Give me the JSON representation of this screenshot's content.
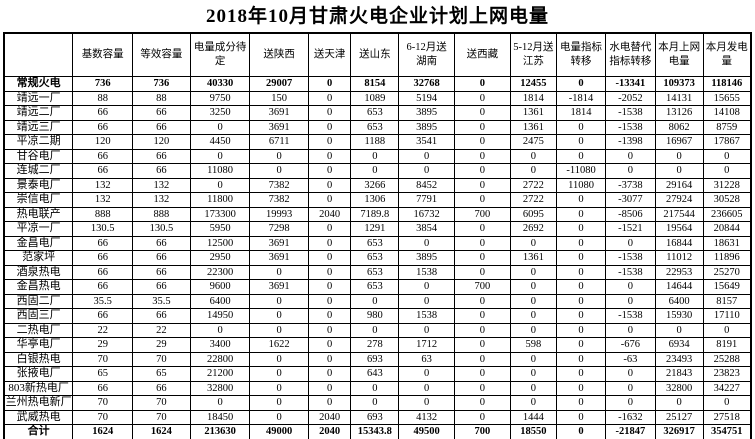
{
  "title": "2018年10月甘肃火电企业计划上网电量",
  "colors": {
    "background": "#ffffff",
    "text": "#000000",
    "border": "#000000"
  },
  "table": {
    "corner_label": "",
    "headers": [
      "基数容量",
      "等效容量",
      "电量成分待定",
      "送陕西",
      "送天津",
      "送山东",
      "6-12月送湖南",
      "送西藏",
      "5-12月送江苏",
      "电量指标转移",
      "水电替代指标转移",
      "本月上网电量",
      "本月发电量"
    ],
    "rows": [
      {
        "label": "常规火电",
        "bold": true,
        "values": [
          "736",
          "736",
          "40330",
          "29007",
          "0",
          "8154",
          "32768",
          "0",
          "12455",
          "0",
          "-13341",
          "109373",
          "118146"
        ]
      },
      {
        "label": "靖远一厂",
        "bold": false,
        "values": [
          "88",
          "88",
          "9750",
          "150",
          "0",
          "1089",
          "5194",
          "0",
          "1814",
          "-1814",
          "-2052",
          "14131",
          "15655"
        ]
      },
      {
        "label": "靖远二厂",
        "bold": false,
        "values": [
          "66",
          "66",
          "3250",
          "3691",
          "0",
          "653",
          "3895",
          "0",
          "1361",
          "1814",
          "-1538",
          "13126",
          "14108"
        ]
      },
      {
        "label": "靖远三厂",
        "bold": false,
        "values": [
          "66",
          "66",
          "0",
          "3691",
          "0",
          "653",
          "3895",
          "0",
          "1361",
          "0",
          "-1538",
          "8062",
          "8759"
        ]
      },
      {
        "label": "平凉二期",
        "bold": false,
        "values": [
          "120",
          "120",
          "4450",
          "6711",
          "0",
          "1188",
          "3541",
          "0",
          "2475",
          "0",
          "-1398",
          "16967",
          "17867"
        ]
      },
      {
        "label": "甘谷电厂",
        "bold": false,
        "values": [
          "66",
          "66",
          "0",
          "0",
          "0",
          "0",
          "0",
          "0",
          "0",
          "0",
          "0",
          "0",
          "0"
        ]
      },
      {
        "label": "连城二厂",
        "bold": false,
        "values": [
          "66",
          "66",
          "11080",
          "0",
          "0",
          "0",
          "0",
          "0",
          "0",
          "-11080",
          "0",
          "0",
          "0"
        ]
      },
      {
        "label": "景泰电厂",
        "bold": false,
        "values": [
          "132",
          "132",
          "0",
          "7382",
          "0",
          "3266",
          "8452",
          "0",
          "2722",
          "11080",
          "-3738",
          "29164",
          "31228"
        ]
      },
      {
        "label": "崇信电厂",
        "bold": false,
        "values": [
          "132",
          "132",
          "11800",
          "7382",
          "0",
          "1306",
          "7791",
          "0",
          "2722",
          "0",
          "-3077",
          "27924",
          "30528"
        ]
      },
      {
        "label": "热电联产",
        "bold": false,
        "values": [
          "888",
          "888",
          "173300",
          "19993",
          "2040",
          "7189.8",
          "16732",
          "700",
          "6095",
          "0",
          "-8506",
          "217544",
          "236605"
        ]
      },
      {
        "label": "平凉一厂",
        "bold": false,
        "values": [
          "130.5",
          "130.5",
          "5950",
          "7298",
          "0",
          "1291",
          "3854",
          "0",
          "2692",
          "0",
          "-1521",
          "19564",
          "20844"
        ]
      },
      {
        "label": "金昌电厂",
        "bold": false,
        "values": [
          "66",
          "66",
          "12500",
          "3691",
          "0",
          "653",
          "0",
          "0",
          "0",
          "0",
          "0",
          "16844",
          "18631"
        ]
      },
      {
        "label": "范家坪",
        "bold": false,
        "values": [
          "66",
          "66",
          "2950",
          "3691",
          "0",
          "653",
          "3895",
          "0",
          "1361",
          "0",
          "-1538",
          "11012",
          "11896"
        ]
      },
      {
        "label": "酒泉热电",
        "bold": false,
        "values": [
          "66",
          "66",
          "22300",
          "0",
          "0",
          "653",
          "1538",
          "0",
          "0",
          "0",
          "-1538",
          "22953",
          "25270"
        ]
      },
      {
        "label": "金昌热电",
        "bold": false,
        "values": [
          "66",
          "66",
          "9600",
          "3691",
          "0",
          "653",
          "0",
          "700",
          "0",
          "0",
          "0",
          "14644",
          "15649"
        ]
      },
      {
        "label": "西固二厂",
        "bold": false,
        "values": [
          "35.5",
          "35.5",
          "6400",
          "0",
          "0",
          "0",
          "0",
          "0",
          "0",
          "0",
          "0",
          "6400",
          "8157"
        ]
      },
      {
        "label": "西固三厂",
        "bold": false,
        "values": [
          "66",
          "66",
          "14950",
          "0",
          "0",
          "980",
          "1538",
          "0",
          "0",
          "0",
          "-1538",
          "15930",
          "17110"
        ]
      },
      {
        "label": "二热电厂",
        "bold": false,
        "values": [
          "22",
          "22",
          "0",
          "0",
          "0",
          "0",
          "0",
          "0",
          "0",
          "0",
          "0",
          "0",
          "0"
        ]
      },
      {
        "label": "华亭电厂",
        "bold": false,
        "values": [
          "29",
          "29",
          "3400",
          "1622",
          "0",
          "278",
          "1712",
          "0",
          "598",
          "0",
          "-676",
          "6934",
          "8191"
        ]
      },
      {
        "label": "白银热电",
        "bold": false,
        "values": [
          "70",
          "70",
          "22800",
          "0",
          "0",
          "693",
          "63",
          "0",
          "0",
          "0",
          "-63",
          "23493",
          "25288"
        ]
      },
      {
        "label": "张掖电厂",
        "bold": false,
        "values": [
          "65",
          "65",
          "21200",
          "0",
          "0",
          "643",
          "0",
          "0",
          "0",
          "0",
          "0",
          "21843",
          "23823"
        ]
      },
      {
        "label": "803新热电厂",
        "bold": false,
        "values": [
          "66",
          "66",
          "32800",
          "0",
          "0",
          "0",
          "0",
          "0",
          "0",
          "0",
          "0",
          "32800",
          "34227"
        ]
      },
      {
        "label": "兰州热电新厂",
        "bold": false,
        "values": [
          "70",
          "70",
          "0",
          "0",
          "0",
          "0",
          "0",
          "0",
          "0",
          "0",
          "0",
          "0",
          "0"
        ]
      },
      {
        "label": "武威热电",
        "bold": false,
        "values": [
          "70",
          "70",
          "18450",
          "0",
          "2040",
          "693",
          "4132",
          "0",
          "1444",
          "0",
          "-1632",
          "25127",
          "27518"
        ]
      },
      {
        "label": "合计",
        "bold": true,
        "values": [
          "1624",
          "1624",
          "213630",
          "49000",
          "2040",
          "15343.8",
          "49500",
          "700",
          "18550",
          "0",
          "-21847",
          "326917",
          "354751"
        ]
      }
    ]
  }
}
